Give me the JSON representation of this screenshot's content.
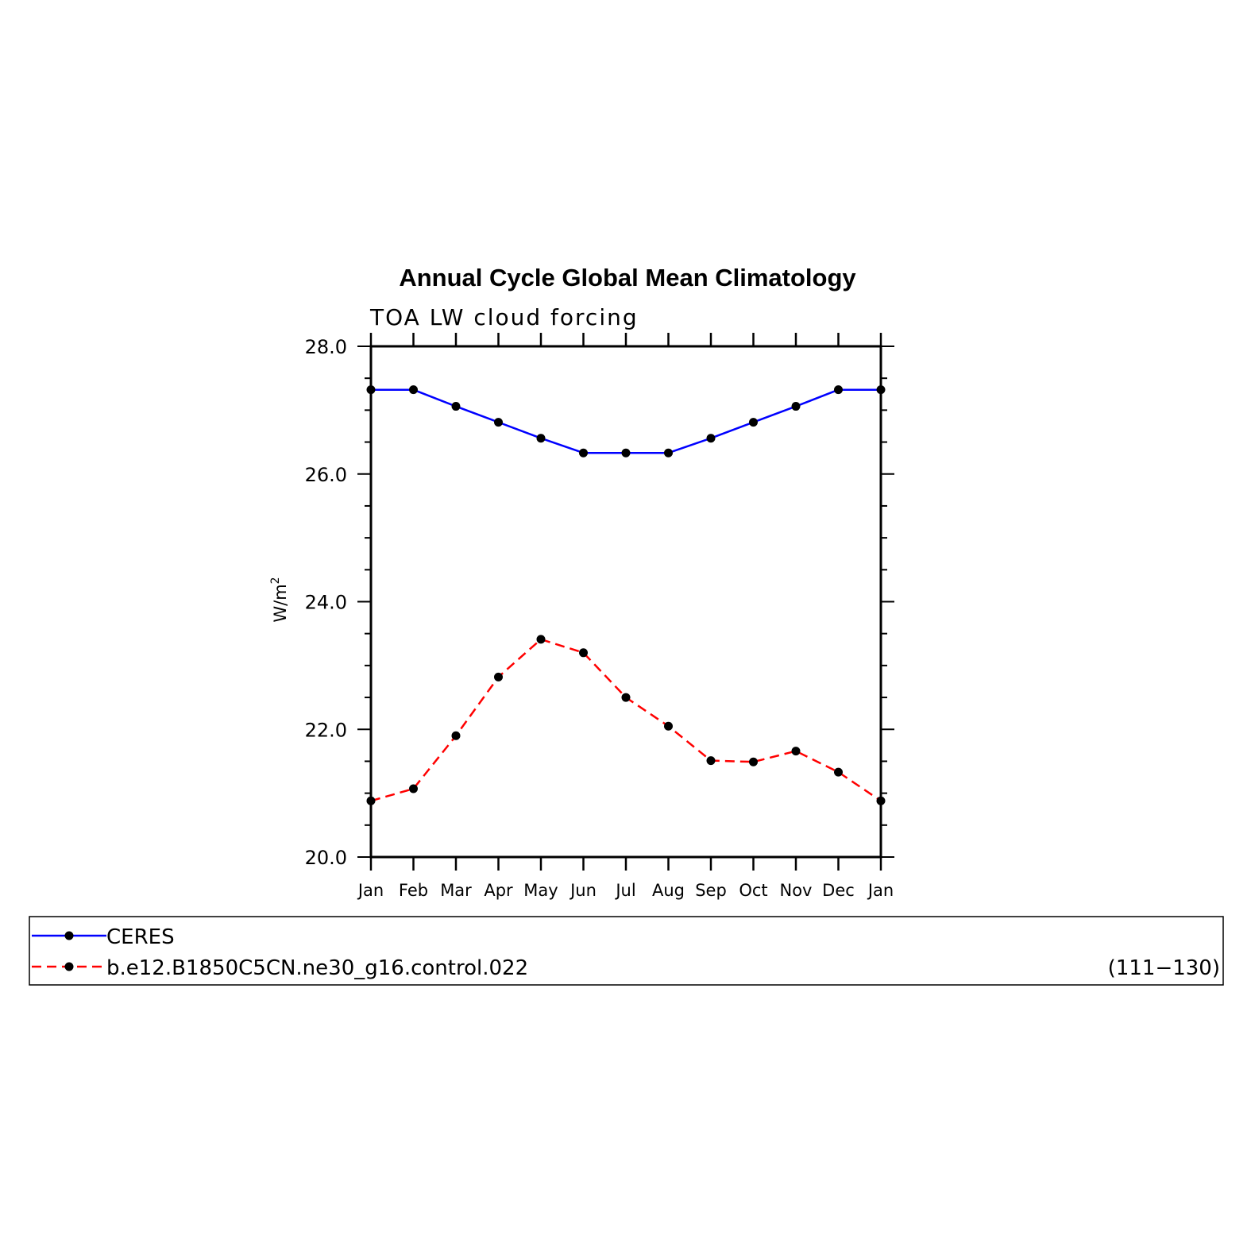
{
  "chart_data": {
    "type": "line",
    "title": "Annual Cycle Global Mean Climatology",
    "subtitle": "TOA LW cloud forcing",
    "ylabel": "W/m",
    "ylabel_superscript": "2",
    "categories": [
      "Jan",
      "Feb",
      "Mar",
      "Apr",
      "May",
      "Jun",
      "Jul",
      "Aug",
      "Sep",
      "Oct",
      "Nov",
      "Dec",
      "Jan"
    ],
    "ylim": [
      20.0,
      28.0
    ],
    "yticks": [
      "20.0",
      "22.0",
      "24.0",
      "26.0",
      "28.0"
    ],
    "ytick_values": [
      20,
      22,
      24,
      26,
      28
    ],
    "grid": false,
    "legend_position": "bottom",
    "series": [
      {
        "name": "CERES",
        "color": "#0000ff",
        "dash": "solid",
        "marker": "dot",
        "values": [
          27.32,
          27.32,
          27.06,
          26.81,
          26.56,
          26.33,
          26.33,
          26.33,
          26.56,
          26.81,
          27.06,
          27.32,
          27.32
        ]
      },
      {
        "name": "b.e12.B1850C5CN.ne30_g16.control.022",
        "color": "#ff0000",
        "dash": "dashed",
        "marker": "dot",
        "years": "(111−130)",
        "values": [
          20.88,
          21.07,
          21.9,
          22.82,
          23.41,
          23.2,
          22.5,
          22.05,
          21.51,
          21.49,
          21.66,
          21.33,
          20.88
        ]
      }
    ]
  }
}
